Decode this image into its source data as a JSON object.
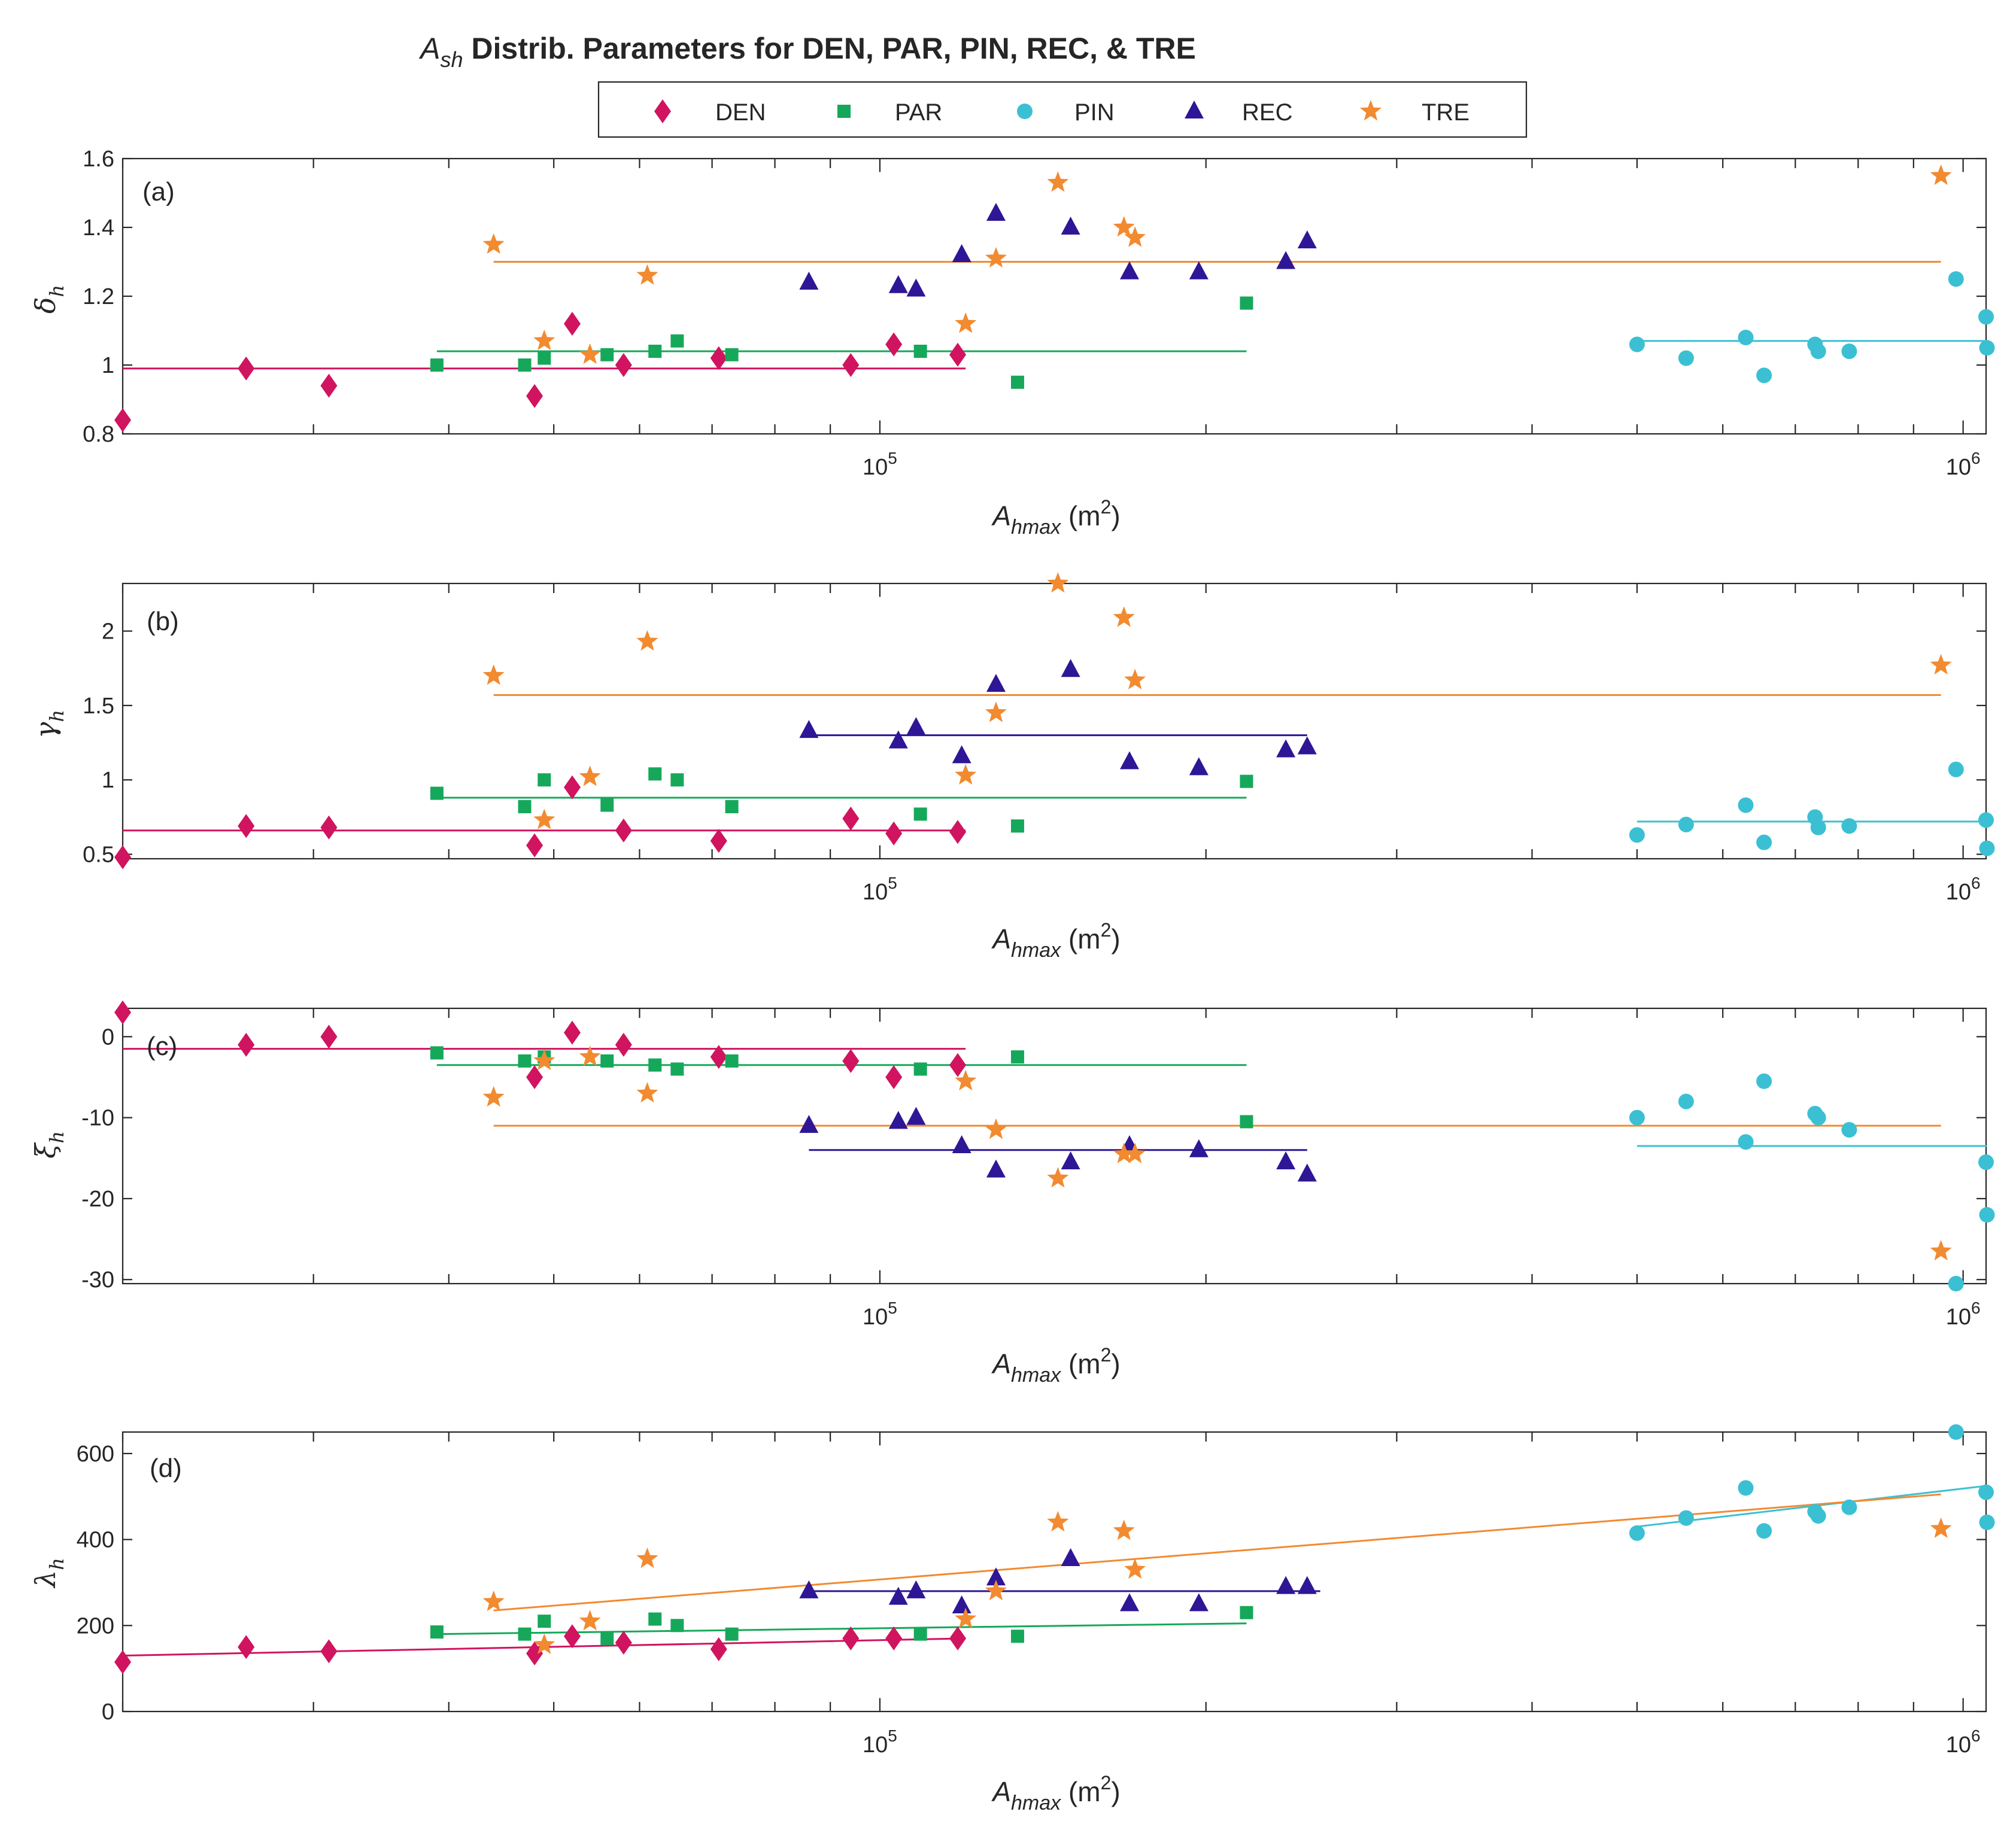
{
  "chart_data": {
    "type": "scatter",
    "title": {
      "prefix": "A",
      "sub": "sh",
      "rest": " Distrib. Parameters for DEN, PAR, PIN, REC, & TRE"
    },
    "xaxis": {
      "label_main": "A",
      "label_sub": "hmax",
      "label_unit_open": " (m",
      "label_unit_sup": "2",
      "label_unit_close": ")",
      "scale": "log",
      "range": [
        20000,
        1050000
      ],
      "tick_labels": [
        {
          "value": 100000,
          "base": "10",
          "exp": "5"
        },
        {
          "value": 1000000,
          "base": "10",
          "exp": "6"
        }
      ]
    },
    "legend": {
      "placement": "top-center",
      "entries": [
        {
          "series": "DEN",
          "label": "DEN",
          "marker": "diamond",
          "color": "#d0145f"
        },
        {
          "series": "PAR",
          "label": "PAR",
          "marker": "square",
          "color": "#16a85a"
        },
        {
          "series": "PIN",
          "label": "PIN",
          "marker": "circle",
          "color": "#3bc0d3"
        },
        {
          "series": "REC",
          "label": "REC",
          "marker": "triangle",
          "color": "#2e1696"
        },
        {
          "series": "TRE",
          "label": "TRE",
          "marker": "star",
          "color": "#f28a30"
        }
      ]
    },
    "x_values": {
      "DEN": [
        20000,
        26000,
        31000,
        48000,
        52000,
        58000,
        71000,
        94000,
        103000,
        118000
      ],
      "PAR": [
        39000,
        47000,
        49000,
        56000,
        62000,
        65000,
        73000,
        109000,
        134000,
        218000
      ],
      "PIN": [
        500000,
        555000,
        630000,
        655000,
        730000,
        735000,
        785000,
        985000,
        1050000,
        1052000
      ],
      "REC": [
        86000,
        104000,
        108000,
        119000,
        128000,
        150000,
        170000,
        197000,
        237000,
        248000
      ],
      "TRE": [
        44000,
        49000,
        54000,
        61000,
        120000,
        128000,
        146000,
        168000,
        172000,
        954000
      ]
    },
    "panels": [
      {
        "tag": "(a)",
        "ylabel": {
          "symbol": "δ",
          "sub": "h"
        },
        "ylim": [
          0.8,
          1.6
        ],
        "yticks": [
          0.8,
          1,
          1.2,
          1.4,
          1.6
        ],
        "ytick_labels": [
          "0.8",
          "1",
          "1.2",
          "1.4",
          "1.6"
        ],
        "series": {
          "DEN": [
            0.84,
            0.99,
            0.94,
            0.91,
            1.12,
            1.0,
            1.02,
            1.0,
            1.06,
            1.03
          ],
          "PAR": [
            1.0,
            1.0,
            1.02,
            1.03,
            1.04,
            1.07,
            1.03,
            1.04,
            0.95,
            1.18
          ],
          "PIN": [
            1.06,
            1.02,
            1.08,
            0.97,
            1.06,
            1.04,
            1.04,
            1.25,
            1.14,
            1.05
          ],
          "REC": [
            1.24,
            1.23,
            1.22,
            1.32,
            1.44,
            1.4,
            1.27,
            1.27,
            1.3,
            1.36
          ],
          "TRE": [
            1.35,
            1.07,
            1.03,
            1.26,
            1.12,
            1.31,
            1.53,
            1.4,
            1.37,
            1.55
          ]
        },
        "fits": {
          "DEN": {
            "x": [
              20000,
              120000
            ],
            "y": [
              0.99,
              0.99
            ]
          },
          "PAR": {
            "x": [
              39000,
              218000
            ],
            "y": [
              1.04,
              1.04
            ]
          },
          "PIN": {
            "x": [
              500000,
              1052000
            ],
            "y": [
              1.07,
              1.07
            ]
          },
          "REC": {
            "x": [
              86000,
              248000
            ],
            "y": [
              1.3,
              1.3
            ]
          },
          "TRE": {
            "x": [
              44000,
              954000
            ],
            "y": [
              1.3,
              1.3
            ]
          }
        }
      },
      {
        "tag": "(b)",
        "ylabel": {
          "symbol": "γ",
          "sub": "h"
        },
        "ylim": [
          0.47,
          2.32
        ],
        "yticks": [
          0.5,
          1,
          1.5,
          2
        ],
        "ytick_labels": [
          "0.5",
          "1",
          "1.5",
          "2"
        ],
        "series": {
          "DEN": [
            0.48,
            0.69,
            0.68,
            0.56,
            0.95,
            0.66,
            0.59,
            0.74,
            0.64,
            0.65
          ],
          "PAR": [
            0.91,
            0.82,
            1.0,
            0.83,
            1.04,
            1.0,
            0.82,
            0.77,
            0.69,
            0.99
          ],
          "PIN": [
            0.63,
            0.7,
            0.83,
            0.58,
            0.75,
            0.68,
            0.69,
            1.07,
            0.73,
            0.54
          ],
          "REC": [
            1.33,
            1.26,
            1.35,
            1.16,
            1.64,
            1.74,
            1.12,
            1.08,
            1.2,
            1.22
          ],
          "TRE": [
            1.7,
            0.73,
            1.02,
            1.93,
            1.03,
            1.45,
            2.32,
            2.09,
            1.67,
            1.77
          ]
        },
        "fits": {
          "DEN": {
            "x": [
              20000,
              120000
            ],
            "y": [
              0.66,
              0.66
            ]
          },
          "PAR": {
            "x": [
              39000,
              218000
            ],
            "y": [
              0.88,
              0.88
            ]
          },
          "PIN": {
            "x": [
              500000,
              1052000
            ],
            "y": [
              0.72,
              0.72
            ]
          },
          "REC": {
            "x": [
              86000,
              248000
            ],
            "y": [
              1.3,
              1.3
            ]
          },
          "TRE": {
            "x": [
              44000,
              954000
            ],
            "y": [
              1.57,
              1.57
            ]
          }
        }
      },
      {
        "tag": "(c)",
        "ylabel": {
          "symbol": "ξ",
          "sub": "h"
        },
        "ylim": [
          -30.5,
          3.5
        ],
        "yticks": [
          -30,
          -20,
          -10,
          0
        ],
        "ytick_labels": [
          "-30",
          "-20",
          "-10",
          "0"
        ],
        "series": {
          "DEN": [
            3.0,
            -1.0,
            0.0,
            -5.0,
            0.5,
            -1.0,
            -2.5,
            -3.0,
            -5.0,
            -3.5
          ],
          "PAR": [
            -2.0,
            -3.0,
            -2.5,
            -3.0,
            -3.5,
            -4.0,
            -3.0,
            -4.0,
            -2.5,
            -10.5
          ],
          "PIN": [
            -10.0,
            -8.0,
            -13.0,
            -5.5,
            -9.5,
            -10.0,
            -11.5,
            -30.5,
            -15.5,
            -22.0
          ],
          "REC": [
            -11.0,
            -10.5,
            -10.0,
            -13.5,
            -16.5,
            -15.5,
            -13.5,
            -14.0,
            -15.5,
            -17.0
          ],
          "TRE": [
            -7.5,
            -3.0,
            -2.5,
            -7.0,
            -5.5,
            -11.5,
            -17.5,
            -14.5,
            -14.5,
            -26.5
          ]
        },
        "fits": {
          "DEN": {
            "x": [
              20000,
              120000
            ],
            "y": [
              -1.5,
              -1.5
            ]
          },
          "PAR": {
            "x": [
              39000,
              218000
            ],
            "y": [
              -3.5,
              -3.5
            ]
          },
          "PIN": {
            "x": [
              500000,
              1052000
            ],
            "y": [
              -13.5,
              -13.5
            ]
          },
          "REC": {
            "x": [
              86000,
              248000
            ],
            "y": [
              -14.0,
              -14.0
            ]
          },
          "TRE": {
            "x": [
              44000,
              954000
            ],
            "y": [
              -11.0,
              -11.0
            ]
          }
        }
      },
      {
        "tag": "(d)",
        "ylabel": {
          "symbol": "λ",
          "sub": "h"
        },
        "ylim": [
          0,
          650
        ],
        "yticks": [
          0,
          200,
          400,
          600
        ],
        "ytick_labels": [
          "0",
          "200",
          "400",
          "600"
        ],
        "series": {
          "DEN": [
            115,
            150,
            140,
            135,
            175,
            160,
            145,
            170,
            170,
            170
          ],
          "PAR": [
            185,
            180,
            210,
            170,
            215,
            200,
            180,
            180,
            175,
            230
          ],
          "PIN": [
            415,
            450,
            520,
            420,
            465,
            455,
            475,
            650,
            510,
            440
          ],
          "REC": [
            280,
            265,
            280,
            245,
            310,
            355,
            250,
            250,
            290,
            290
          ],
          "TRE": [
            255,
            155,
            210,
            355,
            215,
            280,
            440,
            420,
            330,
            425
          ]
        },
        "fits": {
          "DEN": {
            "x": [
              20000,
              120000
            ],
            "y": [
              130,
              170
            ]
          },
          "PAR": {
            "x": [
              39000,
              218000
            ],
            "y": [
              180,
              205
            ]
          },
          "PIN": {
            "x": [
              500000,
              1052000
            ],
            "y": [
              430,
              525
            ]
          },
          "REC": {
            "x": [
              86000,
              255000
            ],
            "y": [
              280,
              280
            ]
          },
          "TRE": {
            "x": [
              44000,
              954000
            ],
            "y": [
              235,
              505
            ]
          }
        }
      }
    ]
  }
}
